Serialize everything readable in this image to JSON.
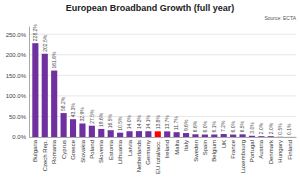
{
  "chart_data": {
    "type": "bar",
    "title": "European Broadband Growth (full year)",
    "annotations": [
      "Source: ECTA"
    ],
    "categories": [
      "Bulgaria",
      "Czech Rep.",
      "Romania",
      "Cyprus",
      "Greece",
      "Slovakia",
      "Poland",
      "Slovenia",
      "Estonia",
      "Lithuania",
      "Latvia",
      "Netherlands",
      "Germany",
      "EU total/acc.",
      "Ireland",
      "Malta",
      "Italy",
      "Sweden",
      "Spain",
      "Belgium",
      "UK",
      "France",
      "Luxembourg",
      "Portugal",
      "Austria",
      "Denmark",
      "Hungary",
      "Finland"
    ],
    "values": [
      228.2,
      202.5,
      161.6,
      58.2,
      43.3,
      32.9,
      27.5,
      19.6,
      16.5,
      10.5,
      14.0,
      14.3,
      14.1,
      13.8,
      13.7,
      11.7,
      9.6,
      6.6,
      6.0,
      6.1,
      7.2,
      6.0,
      6.5,
      3.0,
      2.0,
      2.0,
      0.5,
      0.1
    ],
    "value_labels": [
      "228.2%",
      "202.5%",
      "161.6%",
      "58.2%",
      "43.3%",
      "32.9%",
      "27.5%",
      "19.6%",
      "16.5%",
      "10.5%",
      "14.0%",
      "14.3%",
      "14.1%",
      "13.8%",
      "13.7%",
      "11.7%",
      "9.6%",
      "6.6%",
      "6.0%",
      "6.1%",
      "7.2%",
      "6.0%",
      "6.5%",
      "3.0%",
      "2.0%",
      "2.0%",
      "0.5%",
      "0.1%"
    ],
    "colors": [
      "#7030a0",
      "#7030a0",
      "#7030a0",
      "#7030a0",
      "#7030a0",
      "#7030a0",
      "#7030a0",
      "#7030a0",
      "#7030a0",
      "#7030a0",
      "#7030a0",
      "#7030a0",
      "#7030a0",
      "#ff0000",
      "#7030a0",
      "#7030a0",
      "#7030a0",
      "#7030a0",
      "#7030a0",
      "#7030a0",
      "#7030a0",
      "#7030a0",
      "#7030a0",
      "#7030a0",
      "#7030a0",
      "#7030a0",
      "#7030a0",
      "#7030a0"
    ],
    "ylim": [
      0,
      270
    ],
    "yticks": [
      {
        "value": 0,
        "label": "0.0%"
      },
      {
        "value": 50,
        "label": "50.0%"
      },
      {
        "value": 100,
        "label": "100.0%"
      },
      {
        "value": 150,
        "label": "150.0%"
      },
      {
        "value": 200,
        "label": "200.0%"
      },
      {
        "value": 250,
        "label": "250.0%"
      }
    ],
    "grid": true,
    "data_labels": true
  }
}
